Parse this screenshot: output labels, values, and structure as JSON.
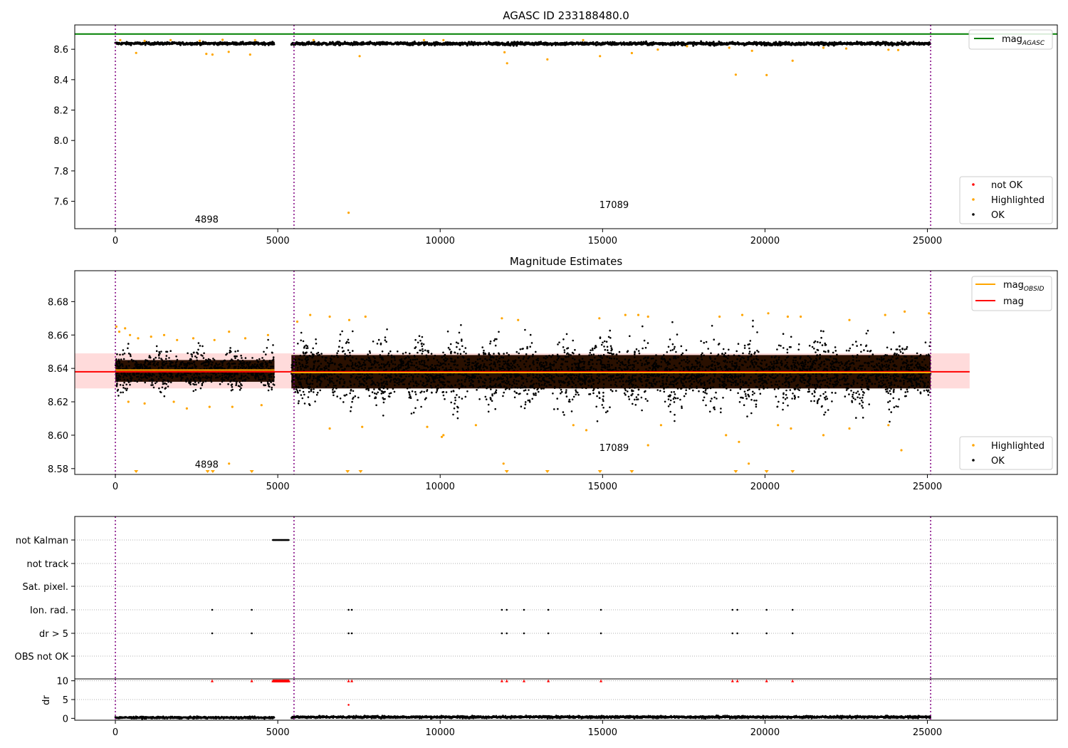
{
  "chart_data": [
    {
      "type": "scatter",
      "title": "AGASC ID 233188480.0",
      "xlabel": "",
      "ylabel": "",
      "xlim": [
        -1250,
        29000
      ],
      "ylim": [
        7.42,
        8.76
      ],
      "xticks": [
        0,
        5000,
        10000,
        15000,
        20000,
        25000
      ],
      "yticks": [
        7.6,
        7.8,
        8.0,
        8.2,
        8.4,
        8.6
      ],
      "ytick_labels": [
        "7.6",
        "7.8",
        "8.0",
        "8.2",
        "8.4",
        "8.6"
      ],
      "grid": false,
      "obsid_boundaries": [
        0,
        5500,
        25100
      ],
      "obsid_labels": [
        {
          "text": "4898",
          "x": 2450,
          "y": 7.46
        },
        {
          "text": "17089",
          "x": 14900,
          "y": 7.555
        }
      ],
      "reference_line": {
        "name": "mag_AGASC",
        "value": 8.7,
        "color": "#008000"
      },
      "legend_top": {
        "position": "top-right",
        "entries": [
          {
            "label": "mag",
            "sub": "AGASC",
            "color": "#008000",
            "kind": "line"
          }
        ]
      },
      "legend_bottom": {
        "position": "bottom-right",
        "entries": [
          {
            "label": "not OK",
            "color": "#ff0000",
            "kind": "dot"
          },
          {
            "label": "Highlighted",
            "color": "#ffa500",
            "kind": "dot"
          },
          {
            "label": "OK",
            "color": "#000000",
            "kind": "dot"
          }
        ]
      },
      "series": [
        {
          "name": "OK",
          "color": "#000000",
          "segments": [
            {
              "x_start": 0,
              "x_end": 4898,
              "center": 8.638,
              "spread": 0.012
            },
            {
              "x_start": 5420,
              "x_end": 25100,
              "center": 8.637,
              "spread": 0.015
            }
          ]
        },
        {
          "name": "Highlighted",
          "color": "#ffa500",
          "points": [
            [
              640,
              8.576
            ],
            [
              2800,
              8.57
            ],
            [
              2990,
              8.565
            ],
            [
              3490,
              8.583
            ],
            [
              4150,
              8.565
            ],
            [
              7180,
              7.525
            ],
            [
              7520,
              8.555
            ],
            [
              11980,
              8.58
            ],
            [
              12060,
              8.508
            ],
            [
              13300,
              8.533
            ],
            [
              14920,
              8.555
            ],
            [
              15900,
              8.575
            ],
            [
              16700,
              8.598
            ],
            [
              18900,
              8.61
            ],
            [
              19100,
              8.433
            ],
            [
              19600,
              8.59
            ],
            [
              20050,
              8.43
            ],
            [
              20850,
              8.525
            ],
            [
              22500,
              8.605
            ],
            [
              23800,
              8.597
            ],
            [
              150,
              8.66
            ],
            [
              900,
              8.655
            ],
            [
              1700,
              8.66
            ],
            [
              2600,
              8.656
            ],
            [
              3300,
              8.662
            ],
            [
              4300,
              8.66
            ],
            [
              6100,
              8.66
            ],
            [
              9500,
              8.66
            ],
            [
              10100,
              8.66
            ],
            [
              14400,
              8.66
            ],
            [
              17600,
              8.62
            ],
            [
              21800,
              8.61
            ],
            [
              24100,
              8.595
            ]
          ]
        }
      ]
    },
    {
      "type": "scatter",
      "title": "Magnitude Estimates",
      "xlabel": "",
      "ylabel": "",
      "xlim": [
        -1250,
        29000
      ],
      "ylim": [
        8.5765,
        8.6985
      ],
      "xticks": [
        0,
        5000,
        10000,
        15000,
        20000,
        25000
      ],
      "yticks": [
        8.58,
        8.6,
        8.62,
        8.64,
        8.66,
        8.68
      ],
      "ytick_labels": [
        "8.58",
        "8.60",
        "8.62",
        "8.64",
        "8.66",
        "8.68"
      ],
      "grid": false,
      "obsid_boundaries": [
        0,
        5500,
        25100
      ],
      "obsid_labels": [
        {
          "text": "4898",
          "x": 2450,
          "y": 8.5805
        },
        {
          "text": "17089",
          "x": 14900,
          "y": 8.5905
        }
      ],
      "band": {
        "x_start": -1250,
        "x_end": 26300,
        "low": 8.628,
        "high": 8.649,
        "color": "#ffcccc"
      },
      "mag": {
        "name": "mag",
        "value": 8.638,
        "x_start": -1250,
        "x_end": 26300,
        "color": "#ff0000"
      },
      "mag_obsid": [
        {
          "name": "mag_OBSID",
          "x_start": 0,
          "x_end": 4898,
          "value": 8.639
        },
        {
          "name": "mag_OBSID",
          "x_start": 5420,
          "x_end": 25100,
          "value": 8.6375
        }
      ],
      "legend_top": {
        "position": "top-right",
        "entries": [
          {
            "label": "mag",
            "sub": "OBSID",
            "color": "#ffa500",
            "kind": "line"
          },
          {
            "label": "mag",
            "sub": "",
            "color": "#ff0000",
            "kind": "line"
          }
        ]
      },
      "legend_bottom": {
        "position": "bottom-right",
        "entries": [
          {
            "label": "Highlighted",
            "color": "#ffa500",
            "kind": "dot"
          },
          {
            "label": "OK",
            "color": "#000000",
            "kind": "dot"
          }
        ]
      },
      "series": [
        {
          "name": "OK",
          "color": "#000000",
          "segments": [
            {
              "x_start": 0,
              "x_end": 4898,
              "center": 8.639,
              "spread": 0.008,
              "core_low": 8.632,
              "core_high": 8.645
            },
            {
              "x_start": 5420,
              "x_end": 25100,
              "center": 8.6375,
              "spread": 0.014,
              "core_low": 8.628,
              "core_high": 8.648
            }
          ]
        },
        {
          "name": "Highlighted",
          "color": "#ffa500",
          "points": [
            [
              30,
              8.665
            ],
            [
              120,
              8.662
            ],
            [
              300,
              8.664
            ],
            [
              450,
              8.66
            ],
            [
              700,
              8.658
            ],
            [
              1100,
              8.659
            ],
            [
              1500,
              8.66
            ],
            [
              1900,
              8.657
            ],
            [
              2400,
              8.658
            ],
            [
              3050,
              8.657
            ],
            [
              3500,
              8.662
            ],
            [
              4000,
              8.658
            ],
            [
              4700,
              8.66
            ],
            [
              400,
              8.62
            ],
            [
              900,
              8.619
            ],
            [
              1800,
              8.62
            ],
            [
              2200,
              8.616
            ],
            [
              2900,
              8.617
            ],
            [
              3600,
              8.617
            ],
            [
              4500,
              8.618
            ],
            [
              5600,
              8.668
            ],
            [
              6000,
              8.672
            ],
            [
              6600,
              8.671
            ],
            [
              7200,
              8.669
            ],
            [
              7700,
              8.671
            ],
            [
              11900,
              8.67
            ],
            [
              12400,
              8.669
            ],
            [
              14900,
              8.67
            ],
            [
              15700,
              8.672
            ],
            [
              16100,
              8.672
            ],
            [
              16400,
              8.671
            ],
            [
              18600,
              8.671
            ],
            [
              19300,
              8.672
            ],
            [
              20100,
              8.673
            ],
            [
              20700,
              8.671
            ],
            [
              21100,
              8.671
            ],
            [
              22600,
              8.669
            ],
            [
              23700,
              8.672
            ],
            [
              24300,
              8.674
            ],
            [
              25050,
              8.673
            ],
            [
              6600,
              8.604
            ],
            [
              7600,
              8.605
            ],
            [
              9600,
              8.605
            ],
            [
              10050,
              8.599
            ],
            [
              10100,
              8.6
            ],
            [
              11100,
              8.606
            ],
            [
              14100,
              8.606
            ],
            [
              14500,
              8.603
            ],
            [
              16400,
              8.594
            ],
            [
              16800,
              8.606
            ],
            [
              18800,
              8.6
            ],
            [
              19200,
              8.596
            ],
            [
              20400,
              8.606
            ],
            [
              20800,
              8.604
            ],
            [
              21800,
              8.6
            ],
            [
              22600,
              8.604
            ],
            [
              23800,
              8.606
            ],
            [
              24200,
              8.591
            ],
            [
              3500,
              8.583
            ],
            [
              11950,
              8.583
            ],
            [
              19500,
              8.583
            ]
          ]
        },
        {
          "name": "Highlighted (off-scale)",
          "color": "#ffa500",
          "marker": "triangle-down",
          "x": [
            640,
            2840,
            3000,
            4200,
            7150,
            7550,
            12050,
            13300,
            14920,
            15900,
            19100,
            20050,
            20850
          ]
        }
      ]
    },
    {
      "type": "scatter",
      "title": "",
      "xlabel": "",
      "ylabel": "",
      "xlim": [
        -1250,
        29000
      ],
      "xticks": [
        0,
        5000,
        10000,
        15000,
        20000,
        25000
      ],
      "obsid_boundaries": [
        0,
        5500,
        25100
      ],
      "flag_rows": [
        "not Kalman",
        "not track",
        "Sat. pixel.",
        "Ion. rad.",
        "dr > 5",
        "OBS not OK"
      ],
      "flags": {
        "not Kalman": {
          "x_start": 4850,
          "x_end": 5350
        },
        "Ion. rad.": [
          2980,
          4200,
          7180,
          7280,
          11900,
          12050,
          12580,
          13330,
          14950,
          19000,
          19150,
          20050,
          20850
        ],
        "dr > 5": [
          2980,
          4200,
          7180,
          7280,
          11900,
          12050,
          12580,
          13330,
          14950,
          19000,
          19150,
          20050,
          20850
        ]
      }
    },
    {
      "type": "scatter",
      "title": "",
      "xlabel": "",
      "ylabel": "dr",
      "xlim": [
        -1250,
        29000
      ],
      "ylim": [
        -0.5,
        10.5
      ],
      "xticks": [
        0,
        5000,
        10000,
        15000,
        20000,
        25000
      ],
      "xtick_labels": [
        "0",
        "5000",
        "10000",
        "15000",
        "20000",
        "25000"
      ],
      "yticks": [
        0,
        5,
        10
      ],
      "ytick_labels": [
        "0",
        "5",
        "10"
      ],
      "clipped": {
        "value": 10,
        "color": "#ff0000",
        "x": [
          2980,
          4200,
          7180,
          7280,
          11900,
          12050,
          12580,
          13330,
          14950,
          19000,
          19150,
          20050,
          20850
        ],
        "x_range": [
          4850,
          5350
        ]
      },
      "outlier": {
        "x": 7180,
        "y": 3.6,
        "color": "#ff0000"
      },
      "series": [
        {
          "name": "OK",
          "color": "#000000",
          "segments": [
            {
              "x_start": 0,
              "x_end": 4898,
              "center": 0.2,
              "spread": 0.2
            },
            {
              "x_start": 5420,
              "x_end": 25100,
              "center": 0.35,
              "spread": 0.25
            }
          ]
        }
      ]
    }
  ]
}
